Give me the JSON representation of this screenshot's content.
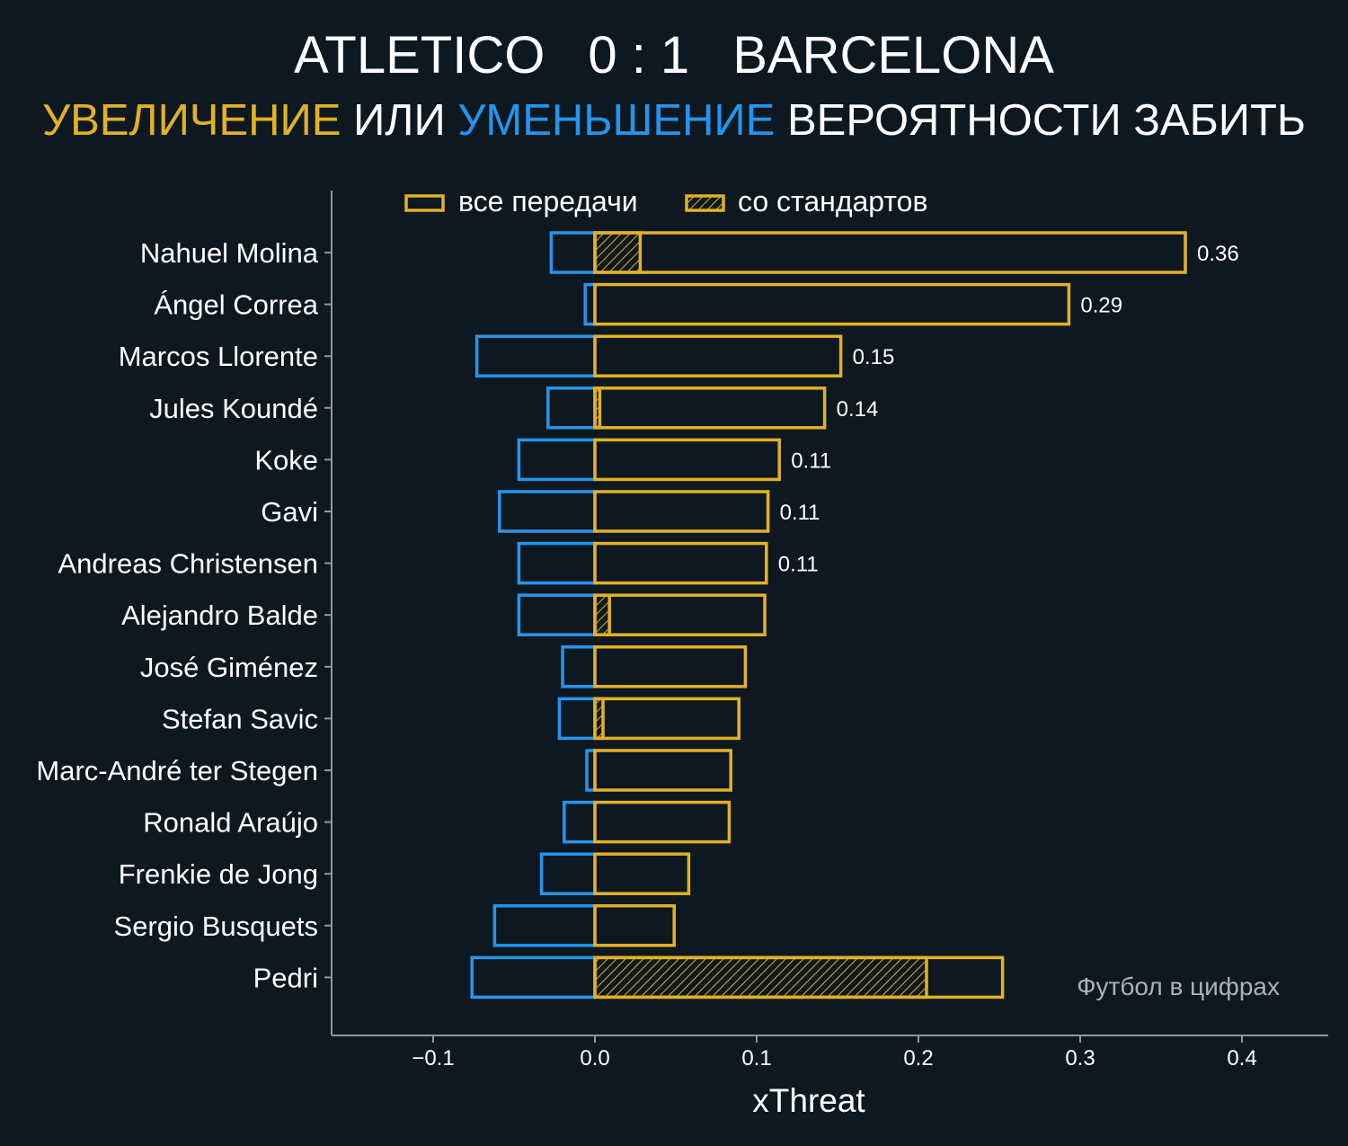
{
  "header": {
    "home_team": "ATLETICO",
    "score": "0 : 1",
    "away_team": "BARCELONA",
    "subtitle_up": "УВЕЛИЧЕНИЕ",
    "subtitle_or": "ИЛИ",
    "subtitle_down": "УМЕНЬШЕНИЕ",
    "subtitle_rest": "ВЕРОЯТНОСТИ ЗАБИТЬ"
  },
  "watermark": "Футбол в цифрах",
  "colors": {
    "background": "#0e1821",
    "increase": "#e2b124",
    "decrease": "#2495ed",
    "axis": "#8a9aa5",
    "text": "#ffffff",
    "watermark": "#a9b3ba"
  },
  "chart_data": {
    "type": "bar",
    "orientation": "horizontal",
    "xlabel": "xThreat",
    "xlim": [
      -0.16,
      0.455
    ],
    "xticks": [
      -0.1,
      0.0,
      0.1,
      0.2,
      0.3,
      0.4
    ],
    "xtick_labels": [
      "−0.1",
      "0.0",
      "0.1",
      "0.2",
      "0.3",
      "0.4"
    ],
    "grid": false,
    "legend_position": "top",
    "legend": [
      {
        "label": "все передачи",
        "style": "outline"
      },
      {
        "label": "со стандартов",
        "style": "hatched"
      }
    ],
    "players": [
      {
        "name": "Nahuel Molina",
        "positive": 0.365,
        "negative": -0.027,
        "set_piece": 0.028,
        "label": "0.36"
      },
      {
        "name": "Ángel Correa",
        "positive": 0.293,
        "negative": -0.006,
        "set_piece": 0.0,
        "label": "0.29"
      },
      {
        "name": "Marcos Llorente",
        "positive": 0.152,
        "negative": -0.073,
        "set_piece": 0.0,
        "label": "0.15"
      },
      {
        "name": "Jules Koundé",
        "positive": 0.142,
        "negative": -0.029,
        "set_piece": 0.003,
        "label": "0.14"
      },
      {
        "name": "Koke",
        "positive": 0.114,
        "negative": -0.047,
        "set_piece": 0.0,
        "label": "0.11"
      },
      {
        "name": "Gavi",
        "positive": 0.107,
        "negative": -0.059,
        "set_piece": 0.0,
        "label": "0.11"
      },
      {
        "name": "Andreas Christensen",
        "positive": 0.106,
        "negative": -0.047,
        "set_piece": 0.0,
        "label": "0.11"
      },
      {
        "name": "Alejandro Balde",
        "positive": 0.105,
        "negative": -0.047,
        "set_piece": 0.009,
        "label": ""
      },
      {
        "name": "José Giménez",
        "positive": 0.093,
        "negative": -0.02,
        "set_piece": 0.0,
        "label": ""
      },
      {
        "name": "Stefan Savic",
        "positive": 0.089,
        "negative": -0.022,
        "set_piece": 0.005,
        "label": ""
      },
      {
        "name": "Marc-André ter Stegen",
        "positive": 0.084,
        "negative": -0.005,
        "set_piece": 0.0,
        "label": ""
      },
      {
        "name": "Ronald Araújo",
        "positive": 0.083,
        "negative": -0.019,
        "set_piece": 0.0,
        "label": ""
      },
      {
        "name": "Frenkie de Jong",
        "positive": 0.058,
        "negative": -0.033,
        "set_piece": 0.0,
        "label": ""
      },
      {
        "name": "Sergio Busquets",
        "positive": 0.049,
        "negative": -0.062,
        "set_piece": 0.0,
        "label": ""
      },
      {
        "name": "Pedri",
        "positive": 0.252,
        "negative": -0.076,
        "set_piece": 0.205,
        "label": ""
      }
    ]
  }
}
